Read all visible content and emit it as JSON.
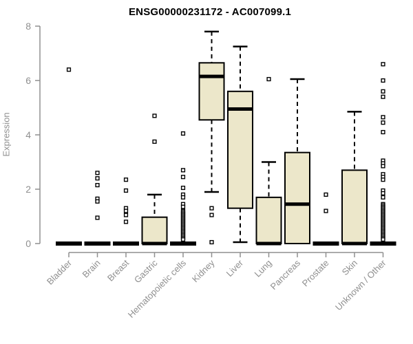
{
  "chart_data": {
    "type": "boxplot",
    "title": "ENSG00000231172 - AC007099.1",
    "ylabel": "Expression",
    "xlabel": "",
    "ylim": [
      0,
      8
    ],
    "yticks": [
      0,
      2,
      4,
      6,
      8
    ],
    "grid": false,
    "legend": "none",
    "colors": {
      "box_fill": "#ece7ca",
      "box_border": "#000000",
      "median": "#000000",
      "axis": "#8f8f8f",
      "tick_label": "#8f8f8f",
      "title": "#000000",
      "background": "#ffffff"
    },
    "categories": [
      "Bladder",
      "Brain",
      "Breast",
      "Gastric",
      "Hematopoietic cells",
      "Kidney",
      "Liver",
      "Lung",
      "Pancreas",
      "Prostate",
      "Skin",
      "Unknown / Other"
    ],
    "series": [
      {
        "category": "Bladder",
        "q1": 0,
        "median": 0,
        "q3": 0,
        "whisker_low": 0,
        "whisker_high": 0,
        "outliers": [
          6.4
        ]
      },
      {
        "category": "Brain",
        "q1": 0,
        "median": 0,
        "q3": 0,
        "whisker_low": 0,
        "whisker_high": 0,
        "outliers": [
          2.6,
          2.4,
          2.15,
          1.65,
          1.55,
          0.95
        ]
      },
      {
        "category": "Breast",
        "q1": 0,
        "median": 0,
        "q3": 0,
        "whisker_low": 0,
        "whisker_high": 0,
        "outliers": [
          2.35,
          1.95,
          1.3,
          1.2,
          1.05,
          0.8
        ]
      },
      {
        "category": "Gastric",
        "q1": 0,
        "median": 0,
        "q3": 0.97,
        "whisker_low": 0,
        "whisker_high": 1.8,
        "outliers": [
          4.7,
          3.75
        ]
      },
      {
        "category": "Hematopoietic cells",
        "q1": 0,
        "median": 0,
        "q3": 0,
        "whisker_low": 0,
        "whisker_high": 0,
        "outliers": [
          4.05,
          2.7,
          2.45,
          2.05,
          1.8,
          1.7,
          1.45,
          1.35,
          1.2,
          1.15,
          1.1,
          1.05,
          1.0,
          0.95,
          0.9,
          0.85,
          0.8,
          0.75,
          0.7,
          0.65,
          0.6,
          0.55,
          0.5,
          0.45,
          0.4,
          0.35,
          0.3,
          0.25,
          0.2,
          0.15
        ]
      },
      {
        "category": "Kidney",
        "q1": 4.55,
        "median": 6.15,
        "q3": 6.65,
        "whisker_low": 1.9,
        "whisker_high": 7.8,
        "outliers": [
          1.3,
          1.05,
          0.05
        ]
      },
      {
        "category": "Liver",
        "q1": 1.3,
        "median": 4.95,
        "q3": 5.6,
        "whisker_low": 0.05,
        "whisker_high": 7.25,
        "outliers": []
      },
      {
        "category": "Lung",
        "q1": 0,
        "median": 0,
        "q3": 1.7,
        "whisker_low": 0,
        "whisker_high": 3.0,
        "outliers": [
          6.05
        ]
      },
      {
        "category": "Pancreas",
        "q1": 0,
        "median": 1.45,
        "q3": 3.35,
        "whisker_low": 0,
        "whisker_high": 6.05,
        "outliers": []
      },
      {
        "category": "Prostate",
        "q1": 0,
        "median": 0,
        "q3": 0,
        "whisker_low": 0,
        "whisker_high": 0,
        "outliers": [
          1.8,
          1.2
        ]
      },
      {
        "category": "Skin",
        "q1": 0,
        "median": 0,
        "q3": 2.7,
        "whisker_low": 0,
        "whisker_high": 4.85,
        "outliers": []
      },
      {
        "category": "Unknown / Other",
        "q1": 0,
        "median": 0,
        "q3": 0,
        "whisker_low": 0,
        "whisker_high": 0,
        "outliers": [
          6.6,
          6.0,
          5.6,
          5.4,
          4.65,
          4.45,
          4.1,
          3.05,
          2.95,
          2.85,
          2.55,
          2.45,
          2.35,
          1.95,
          1.85,
          1.7,
          1.45,
          1.4,
          1.35,
          1.3,
          1.25,
          1.2,
          1.15,
          1.1,
          1.05,
          1.0,
          0.95,
          0.9,
          0.85,
          0.8,
          0.75,
          0.7,
          0.65,
          0.6,
          0.55,
          0.5,
          0.45,
          0.4,
          0.35,
          0.3,
          0.25,
          0.2,
          0.15
        ]
      }
    ]
  }
}
